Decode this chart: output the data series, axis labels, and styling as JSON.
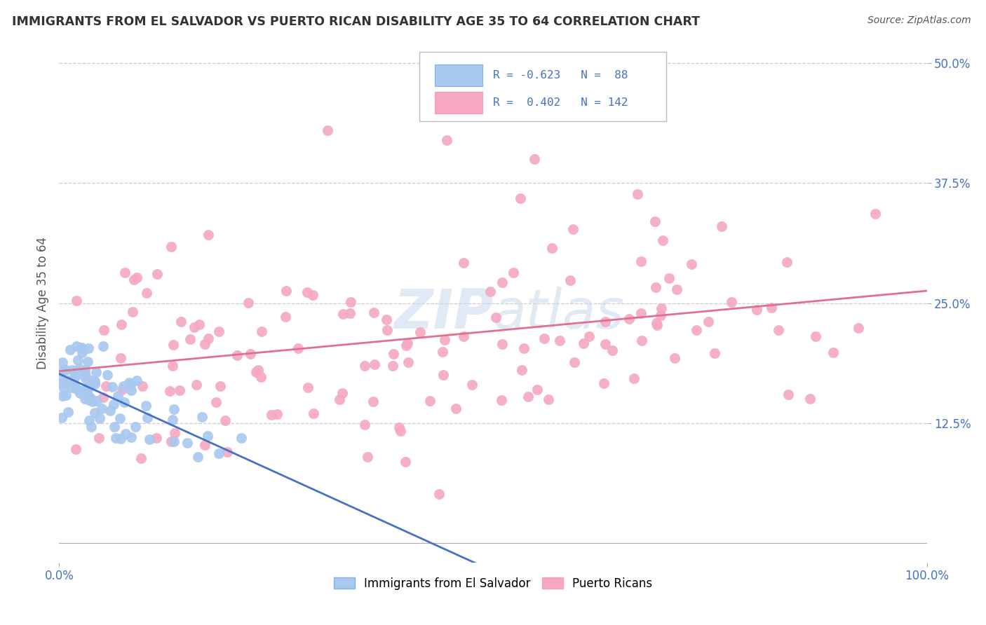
{
  "title": "IMMIGRANTS FROM EL SALVADOR VS PUERTO RICAN DISABILITY AGE 35 TO 64 CORRELATION CHART",
  "source_text": "Source: ZipAtlas.com",
  "ylabel": "Disability Age 35 to 64",
  "blue_R": -0.623,
  "blue_N": 88,
  "pink_R": 0.402,
  "pink_N": 142,
  "blue_color": "#A8C8F0",
  "pink_color": "#F5A8C0",
  "blue_line_color": "#4472C4",
  "pink_line_color": "#E07090",
  "background_color": "#FFFFFF",
  "grid_color": "#CCCCCC",
  "title_color": "#404040",
  "axis_color": "#4472C4",
  "xlim": [
    0.0,
    1.0
  ],
  "ylim": [
    -0.02,
    0.52
  ],
  "ytick_values": [
    0.125,
    0.25,
    0.375,
    0.5
  ],
  "ytick_labels": [
    "12.5%",
    "25.0%",
    "37.5%",
    "50.0%"
  ],
  "watermark_text": "ZIPatlas",
  "legend_label_blue": "Immigrants from El Salvador",
  "legend_label_pink": "Puerto Ricans"
}
